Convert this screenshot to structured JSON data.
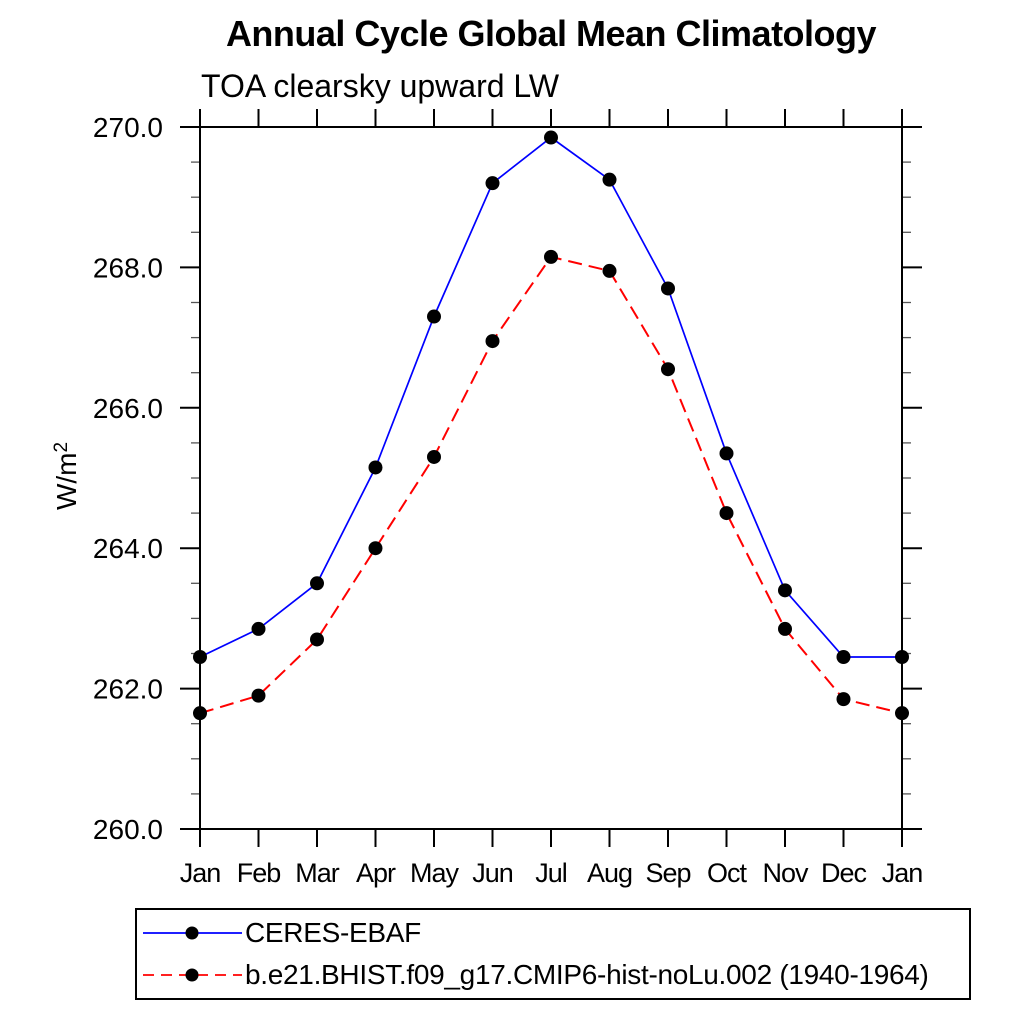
{
  "chart_data": {
    "type": "line",
    "title": "Annual Cycle Global Mean Climatology",
    "subtitle": "TOA clearsky upward LW",
    "y_axis_label": {
      "base": "W/m",
      "exponent": "2",
      "text": "W/m2"
    },
    "x_labels": [
      "Jan",
      "Feb",
      "Mar",
      "Apr",
      "May",
      "Jun",
      "Jul",
      "Aug",
      "Sep",
      "Oct",
      "Nov",
      "Dec",
      "Jan"
    ],
    "ylim": [
      260.0,
      270.0
    ],
    "y_tick_labels": [
      "260.0",
      "262.0",
      "264.0",
      "266.0",
      "268.0",
      "270.0"
    ],
    "y_major_tick_step": 2.0,
    "y_minor_tick_step": 0.5,
    "grid": false,
    "legend_position": "bottom-left",
    "marker": {
      "shape": "filled-circle",
      "color": "#000000",
      "radius_px": 7
    },
    "axis_color": "#000000",
    "series": [
      {
        "name": "CERES-EBAF",
        "color": "#0000ff",
        "line_style": "solid",
        "values": [
          262.45,
          262.85,
          263.5,
          265.15,
          267.3,
          269.2,
          269.85,
          269.25,
          267.7,
          265.35,
          263.4,
          262.45,
          262.45
        ]
      },
      {
        "name": "b.e21.BHIST.f09_g17.CMIP6-hist-noLu.002 (1940-1964)",
        "color": "#ff0000",
        "line_style": "dashed",
        "values": [
          261.65,
          261.9,
          262.7,
          264.0,
          265.3,
          266.95,
          268.15,
          267.95,
          266.55,
          264.5,
          262.85,
          261.85,
          261.65
        ]
      }
    ]
  }
}
